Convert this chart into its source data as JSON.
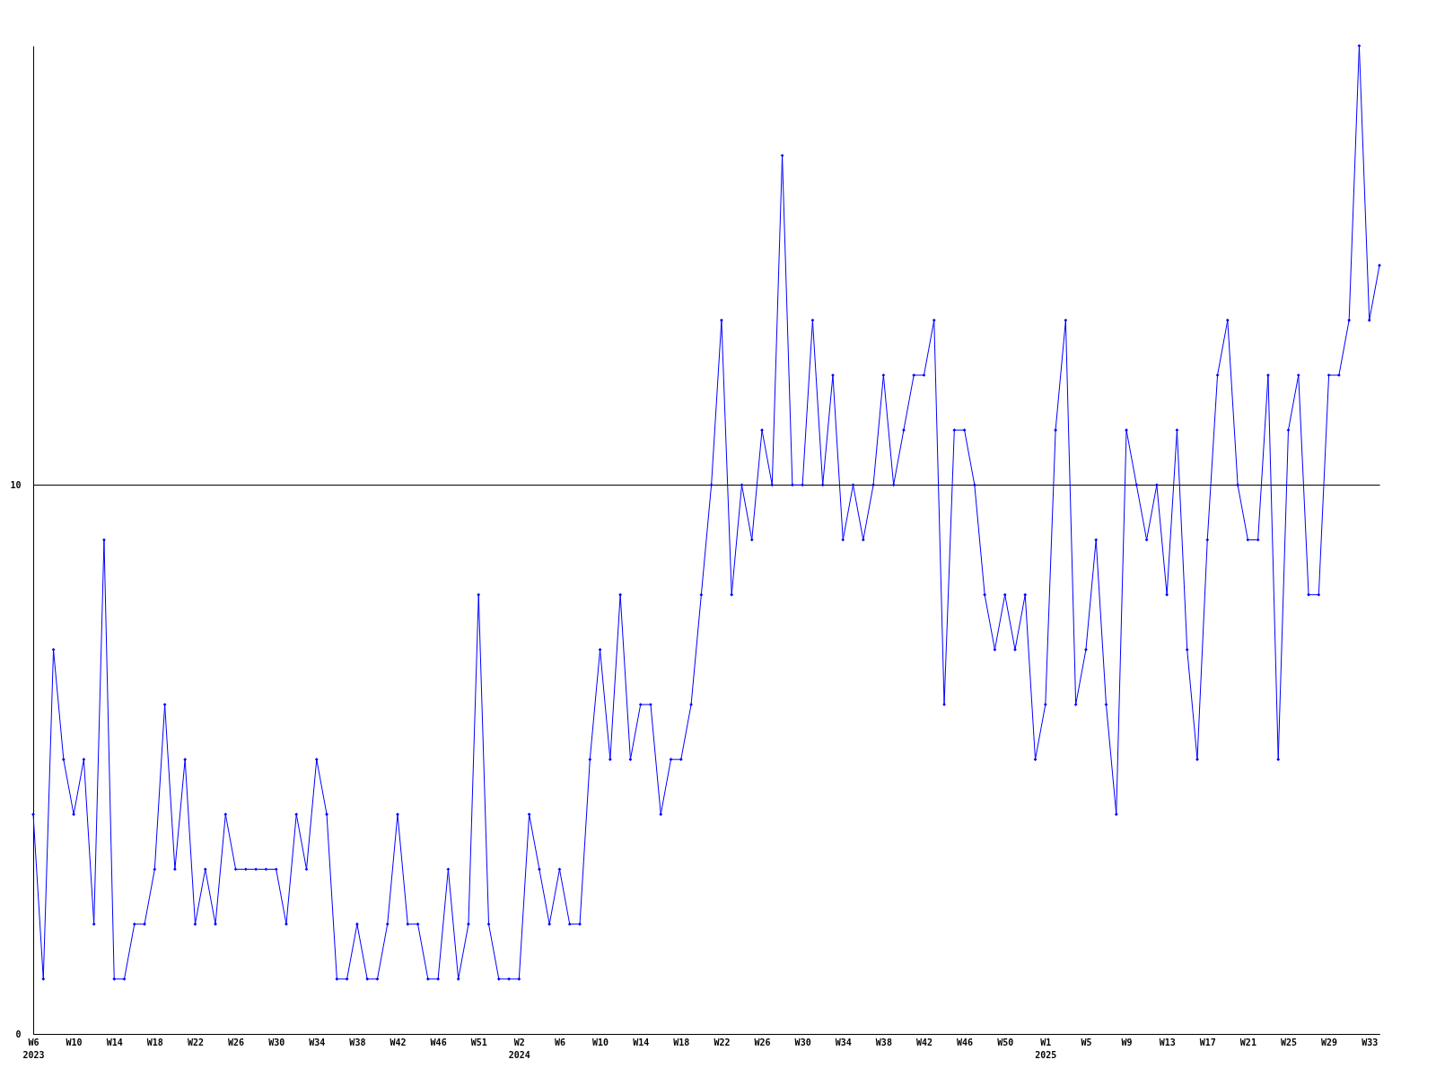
{
  "chart_data": {
    "type": "line",
    "categories": [
      "W6 2023",
      null,
      null,
      null,
      "W10",
      null,
      null,
      null,
      "W14",
      null,
      null,
      null,
      "W18",
      null,
      null,
      null,
      "W22",
      null,
      null,
      null,
      "W26",
      null,
      null,
      null,
      "W30",
      null,
      null,
      null,
      "W34",
      null,
      null,
      null,
      "W38",
      null,
      null,
      null,
      "W42",
      null,
      null,
      null,
      "W46",
      null,
      null,
      null,
      "W51",
      null,
      null,
      null,
      "W2 2024",
      null,
      null,
      null,
      "W6",
      null,
      null,
      null,
      "W10",
      null,
      null,
      null,
      "W14",
      null,
      null,
      null,
      "W18",
      null,
      null,
      null,
      "W22",
      null,
      null,
      null,
      "W26",
      null,
      null,
      null,
      "W30",
      null,
      null,
      null,
      "W34",
      null,
      null,
      null,
      "W38",
      null,
      null,
      null,
      "W42",
      null,
      null,
      null,
      "W46",
      null,
      null,
      null,
      "W50",
      null,
      null,
      null,
      "W1 2025",
      null,
      null,
      null,
      "W5",
      null,
      null,
      null,
      "W9",
      null,
      null,
      null,
      "W13",
      null,
      null,
      null,
      "W17",
      null,
      null,
      null,
      "W21",
      null,
      null,
      null,
      "W25",
      null,
      null,
      null,
      "W29",
      null,
      null,
      null,
      "W33",
      null
    ],
    "series": [
      {
        "color": "#0000ff",
        "values": [
          4,
          1,
          7,
          5,
          4,
          5,
          2,
          9,
          1,
          1,
          2,
          2,
          3,
          6,
          3,
          5,
          2,
          3,
          2,
          4,
          3,
          3,
          3,
          3,
          3,
          2,
          4,
          3,
          5,
          4,
          1,
          1,
          2,
          1,
          1,
          2,
          4,
          2,
          2,
          1,
          1,
          3,
          1,
          2,
          8,
          2,
          1,
          1,
          1,
          4,
          3,
          2,
          3,
          2,
          2,
          5,
          7,
          5,
          8,
          5,
          6,
          6,
          4,
          5,
          5,
          6,
          8,
          10,
          13,
          8,
          10,
          9,
          11,
          10,
          16,
          10,
          10,
          13,
          10,
          12,
          9,
          10,
          9,
          10,
          12,
          10,
          11,
          12,
          12,
          13,
          6,
          11,
          11,
          10,
          8,
          7,
          8,
          7,
          8,
          5,
          6,
          11,
          13,
          6,
          7,
          9,
          6,
          4,
          11,
          10,
          9,
          10,
          8,
          11,
          7,
          5,
          9,
          12,
          13,
          10,
          9,
          9,
          12,
          5,
          11,
          12,
          8,
          8,
          12,
          12,
          13,
          18,
          13,
          14
        ]
      }
    ],
    "ylim": [
      0,
      18
    ],
    "yticks": [
      0,
      10
    ],
    "grid": "y",
    "marker": "diamond",
    "line_style": "solid",
    "legend": false
  }
}
